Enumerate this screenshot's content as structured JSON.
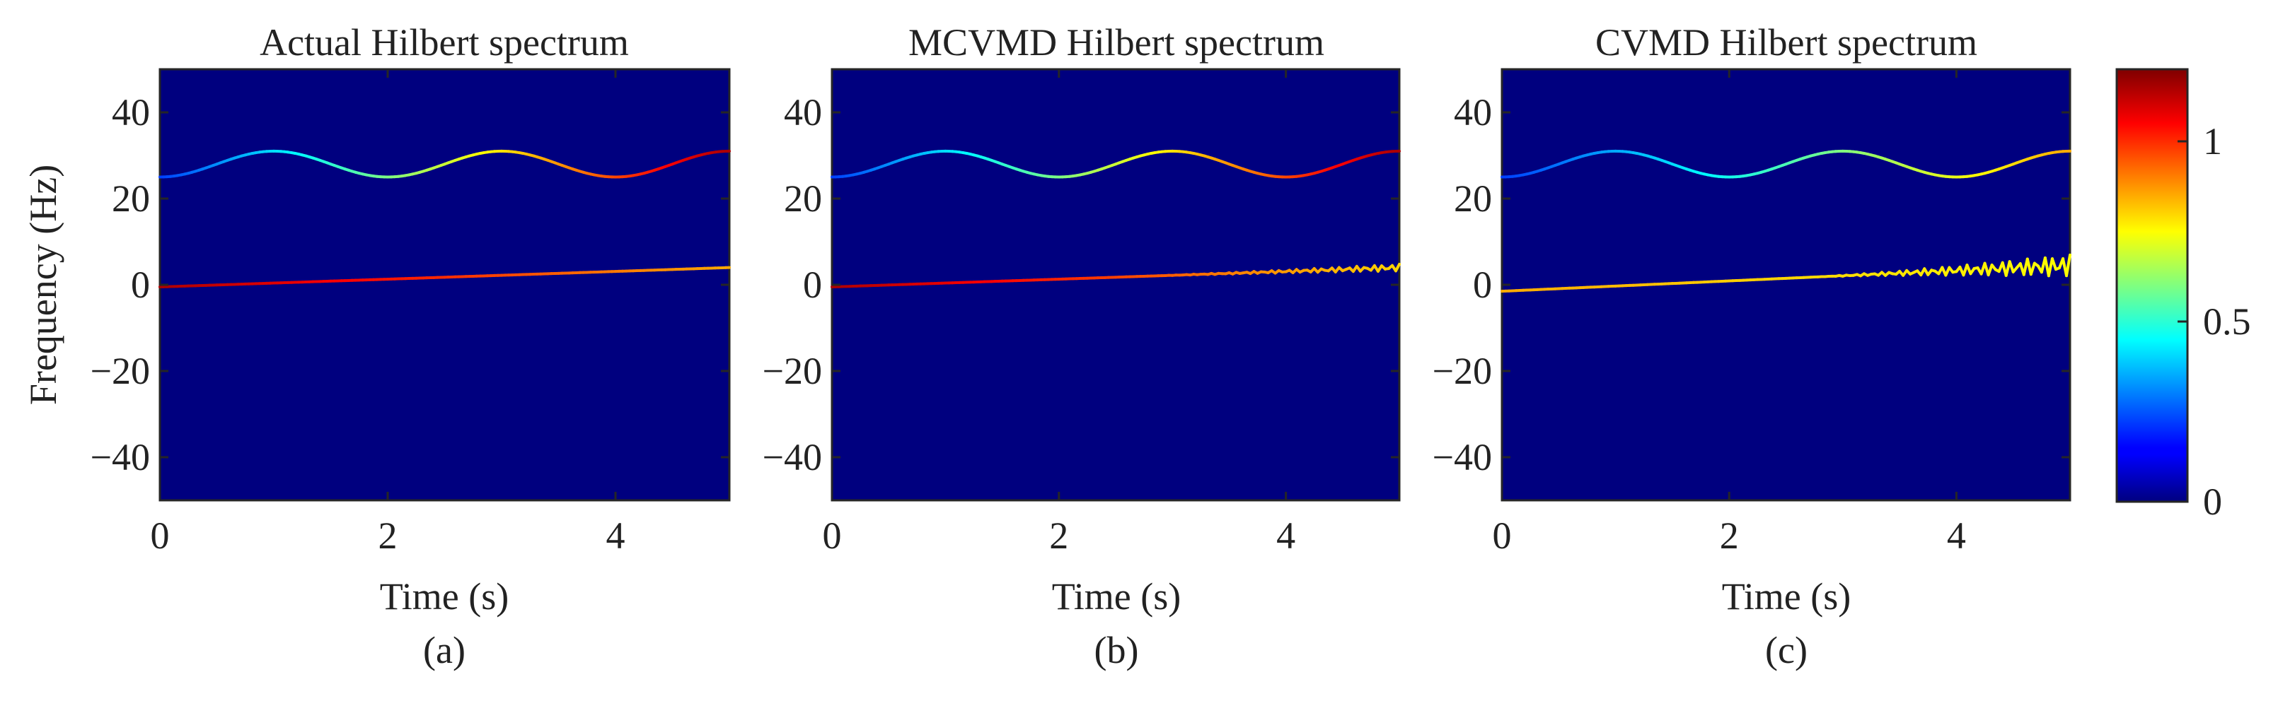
{
  "colors": {
    "background": "#00007f",
    "axis": "#262626"
  },
  "chart_data": [
    {
      "type": "heatmap",
      "title": "Actual Hilbert spectrum",
      "xlabel": "Time (s)",
      "ylabel": "Frequency (Hz)",
      "caption": "(a)",
      "xlim": [
        0,
        5
      ],
      "ylim": [
        -50,
        50
      ],
      "xticks": [
        0,
        2,
        4
      ],
      "yticks": [
        40,
        20,
        0,
        -20,
        -40
      ],
      "curves": [
        {
          "name": "chirp",
          "f0": 25,
          "amp": 3,
          "mid": 28,
          "period": 2,
          "amplitude_start": 0.22,
          "amplitude_end": 1.15,
          "jitter": 0
        },
        {
          "name": "trend",
          "f0": -0.5,
          "slope": 0.9,
          "amplitude_start": 1.15,
          "amplitude_end": 0.85,
          "jitter": 0
        }
      ]
    },
    {
      "type": "heatmap",
      "title": "MCVMD Hilbert spectrum",
      "xlabel": "Time (s)",
      "caption": "(b)",
      "xlim": [
        0,
        5
      ],
      "ylim": [
        -50,
        50
      ],
      "xticks": [
        0,
        2,
        4
      ],
      "yticks": [
        40,
        20,
        0,
        -20,
        -40
      ],
      "curves": [
        {
          "name": "chirp",
          "f0": 25,
          "amp": 3,
          "mid": 28,
          "period": 2,
          "amplitude_start": 0.22,
          "amplitude_end": 1.15,
          "jitter": 0
        },
        {
          "name": "trend",
          "f0": -0.5,
          "slope": 0.9,
          "amplitude_start": 1.15,
          "amplitude_end": 0.8,
          "jitter": 0.8
        }
      ]
    },
    {
      "type": "heatmap",
      "title": "CVMD Hilbert spectrum",
      "xlabel": "Time (s)",
      "caption": "(c)",
      "xlim": [
        0,
        5
      ],
      "ylim": [
        -50,
        50
      ],
      "xticks": [
        0,
        2,
        4
      ],
      "yticks": [
        40,
        20,
        0,
        -20,
        -40
      ],
      "curves": [
        {
          "name": "chirp",
          "f0": 25,
          "amp": 3,
          "mid": 28,
          "period": 2,
          "amplitude_start": 0.22,
          "amplitude_end": 0.85,
          "jitter": 0
        },
        {
          "name": "trend",
          "f0": -1.5,
          "slope": 1.2,
          "amplitude_start": 0.85,
          "amplitude_end": 0.75,
          "jitter": 2.5
        }
      ]
    }
  ],
  "colorbar": {
    "range": [
      0,
      1.2
    ],
    "ticks": [
      0,
      0.5,
      1
    ],
    "tick_labels": [
      "0",
      "0.5",
      "1"
    ]
  }
}
